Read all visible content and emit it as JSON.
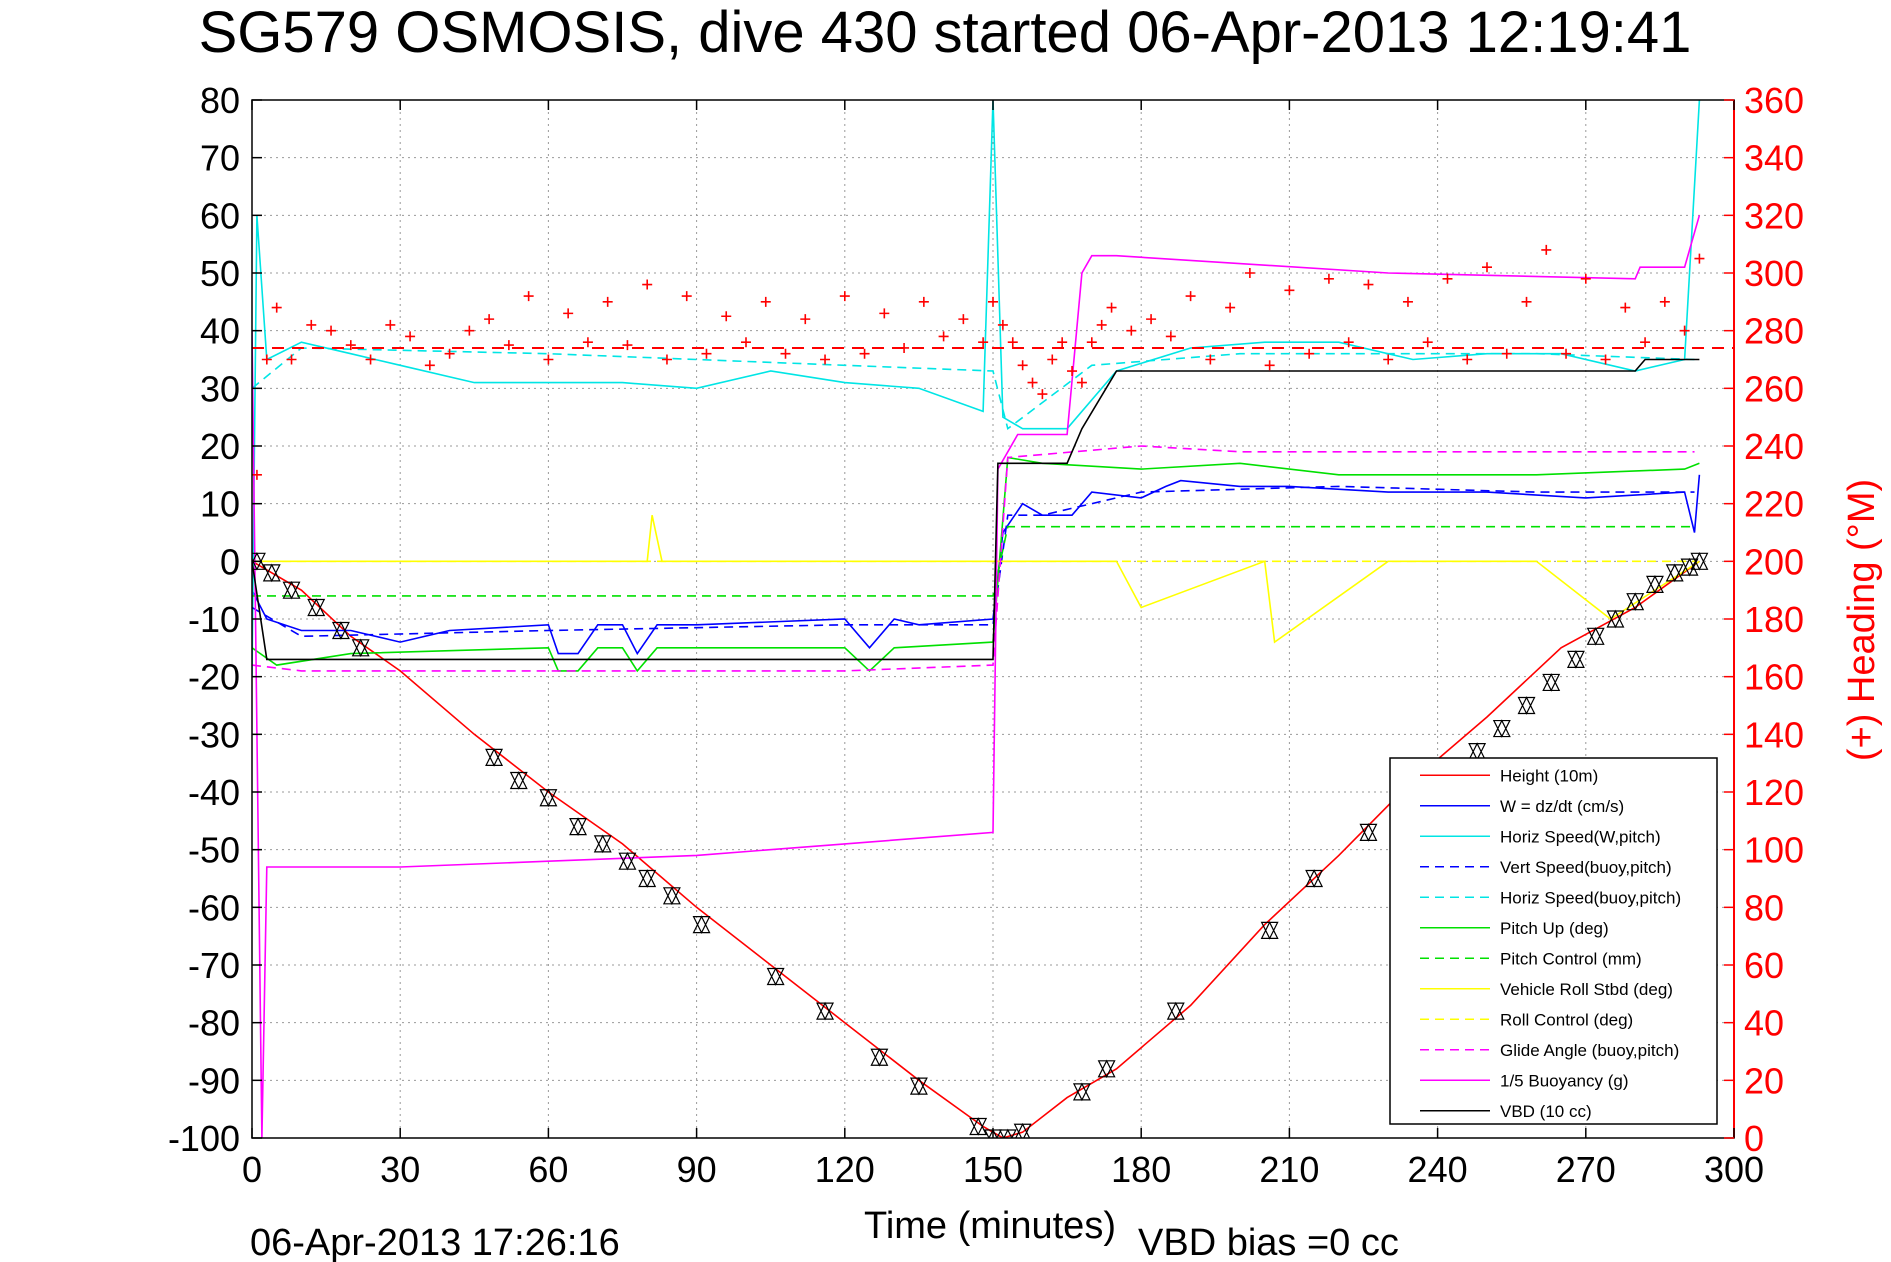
{
  "chart_data": {
    "type": "line",
    "title": "SG579 OSMOSIS, dive 430 started 06-Apr-2013 12:19:41",
    "xlabel": "Time (minutes)",
    "ylabel_right": "(+) Heading (°M)",
    "footer_timestamp": "06-Apr-2013 17:26:16",
    "footer_vbd": "VBD bias =0 cc",
    "xlim": [
      0,
      300
    ],
    "ylim": [
      -100,
      80
    ],
    "ylim_right": [
      0,
      360
    ],
    "x_ticks": [
      "0",
      "30",
      "60",
      "90",
      "120",
      "150",
      "180",
      "210",
      "240",
      "270",
      "300"
    ],
    "y_ticks": [
      "80",
      "70",
      "60",
      "50",
      "40",
      "30",
      "20",
      "10",
      "0",
      "-10",
      "-20",
      "-30",
      "-40",
      "-50",
      "-60",
      "-70",
      "-80",
      "-90",
      "-100"
    ],
    "y_right_ticks": [
      "360",
      "340",
      "320",
      "300",
      "280",
      "260",
      "240",
      "220",
      "200",
      "180",
      "160",
      "140",
      "120",
      "100",
      "80",
      "60",
      "40",
      "20",
      "0"
    ],
    "grid": true,
    "legend_position": "bottom-right",
    "series": [
      {
        "name": "Height (10m)",
        "color": "#ff0000",
        "style": "solid",
        "x": [
          0,
          10,
          20,
          30,
          45,
          60,
          75,
          90,
          105,
          120,
          135,
          148,
          152,
          156,
          165,
          175,
          190,
          205,
          220,
          235,
          250,
          265,
          280,
          293
        ],
        "y": [
          0,
          -5,
          -13,
          -19,
          -30,
          -40,
          -49,
          -60,
          -70,
          -80,
          -90,
          -98,
          -100,
          -99,
          -93,
          -88,
          -77,
          -63,
          -51,
          -38,
          -27,
          -15,
          -8,
          0
        ]
      },
      {
        "name": "W = dz/dt (cm/s)",
        "color": "#0000ff",
        "style": "solid",
        "x": [
          0,
          3,
          10,
          20,
          30,
          40,
          60,
          62,
          66,
          70,
          75,
          78,
          82,
          90,
          120,
          125,
          130,
          135,
          150,
          152,
          156,
          160,
          166,
          170,
          180,
          185,
          188,
          200,
          210,
          230,
          250,
          270,
          290,
          292,
          293
        ],
        "y": [
          -5,
          -10,
          -12,
          -12,
          -14,
          -12,
          -11,
          -16,
          -16,
          -11,
          -11,
          -16,
          -11,
          -11,
          -10,
          -15,
          -10,
          -11,
          -10,
          5,
          10,
          8,
          8,
          12,
          11,
          13,
          14,
          13,
          13,
          12,
          12,
          11,
          12,
          5,
          15
        ]
      },
      {
        "name": "Horiz Speed(W,pitch)",
        "color": "#00e5e5",
        "style": "solid",
        "x": [
          0,
          1,
          3,
          10,
          20,
          30,
          45,
          60,
          75,
          90,
          105,
          120,
          135,
          148,
          150,
          152,
          156,
          165,
          175,
          190,
          205,
          220,
          235,
          250,
          265,
          280,
          290,
          293
        ],
        "y": [
          -20,
          60,
          35,
          38,
          36,
          34,
          31,
          31,
          31,
          30,
          33,
          31,
          30,
          26,
          80,
          25,
          23,
          23,
          33,
          37,
          38,
          38,
          35,
          36,
          36,
          33,
          35,
          80
        ]
      },
      {
        "name": "Vert Speed(buoy,pitch)",
        "color": "#0000ff",
        "style": "dashed",
        "x": [
          0,
          10,
          60,
          120,
          150,
          153,
          160,
          180,
          220,
          260,
          292
        ],
        "y": [
          -8,
          -13,
          -12,
          -11,
          -11,
          8,
          8,
          12,
          13,
          12,
          12
        ]
      },
      {
        "name": "Horiz Speed(buoy,pitch)",
        "color": "#00e5e5",
        "style": "dashed",
        "x": [
          0,
          10,
          60,
          120,
          150,
          153,
          170,
          200,
          260,
          292
        ],
        "y": [
          30,
          37,
          36,
          34,
          33,
          23,
          34,
          36,
          36,
          35
        ]
      },
      {
        "name": "Pitch Up (deg)",
        "color": "#00e000",
        "style": "solid",
        "x": [
          0,
          5,
          20,
          60,
          62,
          66,
          70,
          75,
          78,
          82,
          120,
          125,
          130,
          150,
          153,
          160,
          180,
          200,
          220,
          260,
          290,
          293
        ],
        "y": [
          -15,
          -18,
          -16,
          -15,
          -19,
          -19,
          -15,
          -15,
          -19,
          -15,
          -15,
          -19,
          -15,
          -14,
          18,
          17,
          16,
          17,
          15,
          15,
          16,
          17
        ]
      },
      {
        "name": "Pitch Control (mm)",
        "color": "#00e000",
        "style": "dashed",
        "x": [
          0,
          5,
          30,
          150,
          153,
          170,
          292
        ],
        "y": [
          -6,
          -6,
          -6,
          -6,
          6,
          6,
          6
        ]
      },
      {
        "name": "Vehicle Roll Stbd (deg)",
        "color": "#ffff00",
        "style": "solid",
        "x": [
          0,
          5,
          20,
          50,
          80,
          81,
          83,
          110,
          150,
          155,
          175,
          180,
          205,
          207,
          230,
          260,
          275,
          293
        ],
        "y": [
          0,
          0,
          0,
          0,
          0,
          8,
          0,
          0,
          0,
          0,
          0,
          -8,
          0,
          -14,
          0,
          0,
          -10,
          0
        ]
      },
      {
        "name": "Roll Control (deg)",
        "color": "#ffff00",
        "style": "dashed",
        "x": [
          0,
          150,
          153,
          292
        ],
        "y": [
          0,
          0,
          0,
          0
        ]
      },
      {
        "name": "Glide Angle (buoy,pitch)",
        "color": "#ff00ff",
        "style": "dashed",
        "x": [
          0,
          10,
          60,
          120,
          150,
          153,
          180,
          200,
          260,
          292
        ],
        "y": [
          -18,
          -19,
          -19,
          -19,
          -18,
          18,
          20,
          19,
          19,
          19
        ]
      },
      {
        "name": "1/5 Buoyancy (g)",
        "color": "#ff00ff",
        "style": "solid",
        "x": [
          0,
          2,
          3,
          5,
          30,
          60,
          90,
          120,
          150,
          151,
          155,
          165,
          168,
          170,
          175,
          230,
          280,
          281,
          290,
          293
        ],
        "y": [
          40,
          -100,
          -53,
          -53,
          -53,
          -52,
          -51,
          -49,
          -47,
          16,
          22,
          22,
          50,
          53,
          53,
          50,
          49,
          51,
          51,
          60
        ]
      },
      {
        "name": "VBD (10 cc)",
        "color": "#000000",
        "style": "solid",
        "x": [
          0,
          3,
          5,
          150,
          151,
          155,
          165,
          168,
          175,
          280,
          282,
          293
        ],
        "y": [
          0,
          -17,
          -17,
          -17,
          17,
          17,
          17,
          23,
          33,
          33,
          35,
          35
        ]
      }
    ],
    "heading_series": {
      "name": "Heading",
      "color": "#ff0000",
      "marker": "+",
      "mean": 274,
      "x": [
        1,
        3,
        5,
        8,
        12,
        16,
        20,
        24,
        28,
        32,
        36,
        40,
        44,
        48,
        52,
        56,
        60,
        64,
        68,
        72,
        76,
        80,
        84,
        88,
        92,
        96,
        100,
        104,
        108,
        112,
        116,
        120,
        124,
        128,
        132,
        136,
        140,
        144,
        148,
        150,
        152,
        154,
        156,
        158,
        160,
        162,
        164,
        166,
        168,
        170,
        172,
        174,
        178,
        182,
        186,
        190,
        194,
        198,
        202,
        206,
        210,
        214,
        218,
        222,
        226,
        230,
        234,
        238,
        242,
        246,
        250,
        254,
        258,
        262,
        266,
        270,
        274,
        278,
        282,
        286,
        290,
        293
      ],
      "y": [
        230,
        270,
        288,
        270,
        282,
        280,
        275,
        270,
        282,
        278,
        268,
        272,
        280,
        284,
        275,
        292,
        270,
        286,
        276,
        290,
        275,
        296,
        270,
        292,
        272,
        285,
        276,
        290,
        272,
        284,
        270,
        292,
        272,
        286,
        274,
        290,
        278,
        284,
        276,
        290,
        282,
        276,
        268,
        262,
        258,
        270,
        276,
        266,
        262,
        276,
        282,
        288,
        280,
        284,
        278,
        292,
        270,
        288,
        300,
        268,
        294,
        272,
        298,
        276,
        296,
        270,
        290,
        276,
        298,
        270,
        302,
        272,
        290,
        308,
        272,
        298,
        270,
        288,
        276,
        290,
        280,
        305
      ]
    },
    "markers": {
      "color": "#000000",
      "style": "triangle-pair",
      "x": [
        1,
        4,
        8,
        13,
        18,
        22,
        49,
        54,
        60,
        66,
        71,
        76,
        80,
        85,
        91,
        106,
        116,
        127,
        135,
        147,
        150,
        153,
        156,
        168,
        173,
        187,
        206,
        215,
        226,
        248,
        253,
        258,
        263,
        268,
        272,
        276,
        280,
        284,
        288,
        291,
        293
      ],
      "y": [
        0,
        -2,
        -5,
        -8,
        -12,
        -15,
        -34,
        -38,
        -41,
        -46,
        -49,
        -52,
        -55,
        -58,
        -63,
        -72,
        -78,
        -86,
        -91,
        -98,
        -100,
        -100,
        -99,
        -92,
        -88,
        -78,
        -64,
        -55,
        -47,
        -33,
        -29,
        -25,
        -21,
        -17,
        -13,
        -10,
        -7,
        -4,
        -2,
        -1,
        0
      ]
    }
  }
}
